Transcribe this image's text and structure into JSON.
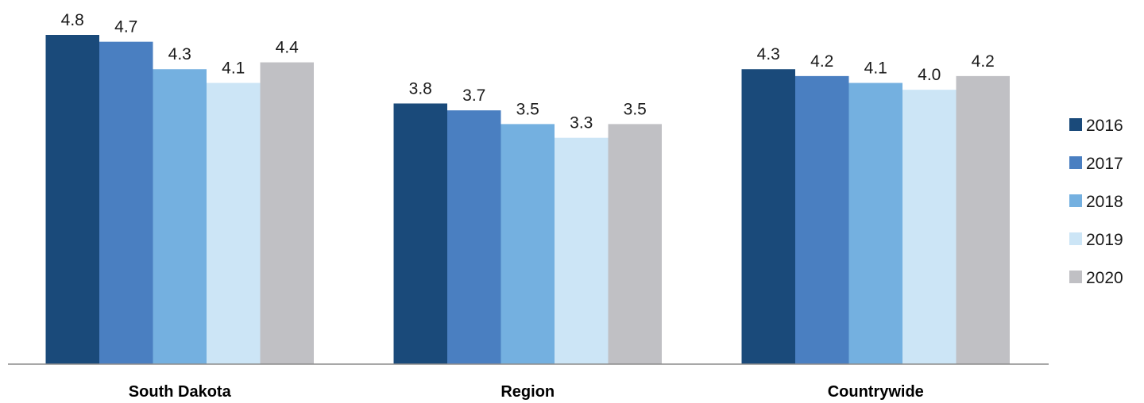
{
  "chart_data": {
    "type": "bar",
    "categories": [
      "South Dakota",
      "Region",
      "Countrywide"
    ],
    "series": [
      {
        "name": "2016",
        "color": "#1a4a7a",
        "values": [
          4.8,
          3.8,
          4.3
        ]
      },
      {
        "name": "2017",
        "color": "#4a7fc1",
        "values": [
          4.7,
          3.7,
          4.2
        ]
      },
      {
        "name": "2018",
        "color": "#74b0e0",
        "values": [
          4.3,
          3.5,
          4.1
        ]
      },
      {
        "name": "2019",
        "color": "#cce5f6",
        "values": [
          4.1,
          3.3,
          4.0
        ]
      },
      {
        "name": "2020",
        "color": "#c0c0c4",
        "values": [
          4.4,
          3.5,
          4.2
        ]
      }
    ],
    "value_labels": [
      [
        "4.8",
        "3.8",
        "4.3"
      ],
      [
        "4.7",
        "3.7",
        "4.2"
      ],
      [
        "4.3",
        "3.5",
        "4.1"
      ],
      [
        "4.1",
        "3.3",
        "4.0"
      ],
      [
        "4.4",
        "3.5",
        "4.2"
      ]
    ],
    "ylim": [
      0,
      4.8
    ],
    "grid": false,
    "legend_position": "right"
  }
}
